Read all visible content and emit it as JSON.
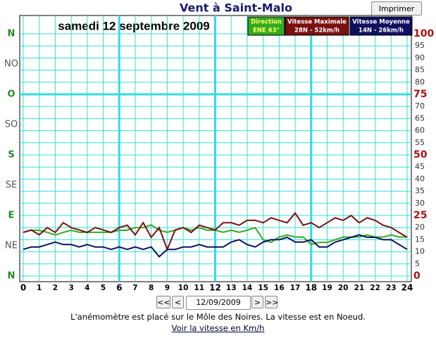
{
  "ui": {
    "print_button": "Imprimer",
    "nav": [
      "<<",
      "<",
      "12/09/2009",
      ">",
      ">>"
    ],
    "note": "L'anémomètre est placé sur le Môle des Noires. La vitesse est en Noeud.",
    "link": "Voir la vitesse en Km/h"
  },
  "chart_data": {
    "type": "line",
    "title": "Vent à Saint-Malo",
    "subtitle": "samedi 12 septembre 2009",
    "x": [
      0,
      0.5,
      1,
      1.5,
      2,
      2.5,
      3,
      3.5,
      4,
      4.5,
      5,
      5.5,
      6,
      6.5,
      7,
      7.5,
      8,
      8.5,
      9,
      9.5,
      10,
      10.5,
      11,
      11.5,
      12,
      12.5,
      13,
      13.5,
      14,
      14.5,
      15,
      15.5,
      16,
      16.5,
      17,
      17.5,
      18,
      18.5,
      19,
      19.5,
      20,
      20.5,
      21,
      21.5,
      22,
      22.5,
      23,
      23.5,
      24
    ],
    "xlim": [
      0,
      24
    ],
    "xticks": [
      0,
      1,
      2,
      3,
      4,
      5,
      6,
      7,
      8,
      9,
      10,
      11,
      12,
      13,
      14,
      15,
      16,
      17,
      18,
      19,
      20,
      21,
      22,
      23,
      24
    ],
    "ylim": [
      0,
      100
    ],
    "yticks": [
      0,
      5,
      10,
      15,
      20,
      25,
      30,
      35,
      40,
      45,
      50,
      55,
      60,
      65,
      70,
      75,
      80,
      85,
      90,
      95,
      100
    ],
    "y2lim": [
      0,
      360
    ],
    "y2ticks": [
      {
        "value": 0,
        "label": "N"
      },
      {
        "value": 45,
        "label": "NE"
      },
      {
        "value": 90,
        "label": "E"
      },
      {
        "value": 135,
        "label": "SE"
      },
      {
        "value": 180,
        "label": "S"
      },
      {
        "value": 225,
        "label": "SO"
      },
      {
        "value": 270,
        "label": "O"
      },
      {
        "value": 315,
        "label": "NO"
      },
      {
        "value": 360,
        "label": "N"
      }
    ],
    "grid": true,
    "series": [
      {
        "name": "Direction",
        "legend_value": "ENE 63°",
        "color": "#33aa22",
        "axis": "y2",
        "values": [
          65,
          68,
          68,
          65,
          61,
          65,
          68,
          65,
          65,
          65,
          65,
          65,
          68,
          68,
          72,
          72,
          76,
          68,
          65,
          68,
          72,
          68,
          72,
          68,
          68,
          65,
          68,
          65,
          68,
          72,
          54,
          50,
          58,
          61,
          58,
          58,
          47,
          50,
          50,
          54,
          58,
          58,
          58,
          61,
          58,
          58,
          61,
          58,
          58
        ]
      },
      {
        "name": "Vitesse Maximale",
        "legend_value": "28N - 52km/h",
        "color": "#7a1010",
        "values": [
          18,
          19,
          17,
          20,
          18,
          22,
          20,
          19,
          18,
          20,
          19,
          18,
          20,
          21,
          17,
          22,
          16,
          20,
          11,
          19,
          20,
          18,
          21,
          20,
          19,
          22,
          22,
          21,
          23,
          23,
          22,
          24,
          23,
          22,
          26,
          21,
          22,
          20,
          22,
          24,
          23,
          25,
          22,
          24,
          23,
          21,
          20,
          18,
          16
        ]
      },
      {
        "name": "Vitesse Moyenne",
        "legend_value": "14N - 26km/h",
        "color": "#101060",
        "values": [
          11,
          12,
          12,
          13,
          14,
          13,
          13,
          12,
          13,
          12,
          12,
          11,
          12,
          11,
          12,
          11,
          12,
          8,
          11,
          11,
          12,
          12,
          13,
          12,
          12,
          12,
          14,
          15,
          13,
          12,
          14,
          15,
          15,
          16,
          14,
          14,
          15,
          12,
          12,
          14,
          15,
          16,
          17,
          16,
          16,
          15,
          15,
          13,
          11
        ]
      }
    ]
  }
}
